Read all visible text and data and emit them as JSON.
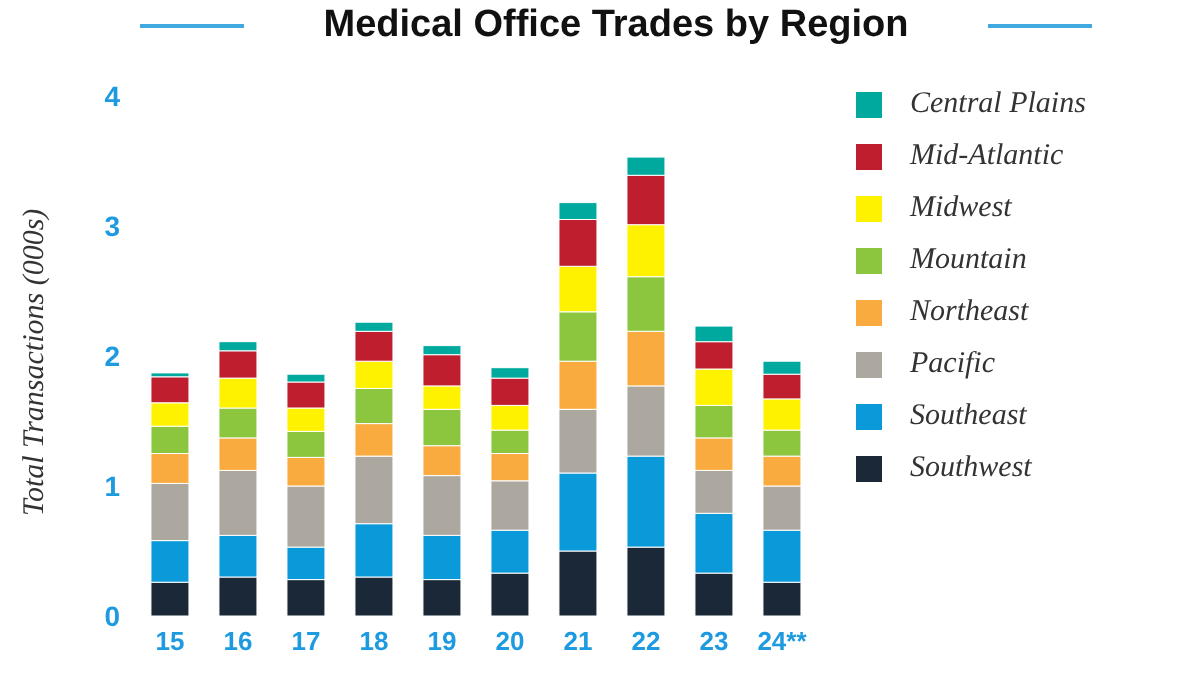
{
  "chart_data": {
    "type": "bar",
    "title": "Medical Office Trades by Region",
    "ylabel": "Total Transactions (000s)",
    "stacked": true,
    "legend": "right",
    "grid": false,
    "categories": [
      "15",
      "16",
      "17",
      "18",
      "19",
      "20",
      "21",
      "22",
      "23",
      "24**"
    ],
    "ylim": [
      0,
      4
    ],
    "yticks": [
      0,
      1,
      2,
      3,
      4
    ],
    "series": [
      {
        "name": "Southwest",
        "color": "#1b2838",
        "values": [
          0.26,
          0.3,
          0.28,
          0.3,
          0.28,
          0.33,
          0.5,
          0.53,
          0.33,
          0.26
        ]
      },
      {
        "name": "Southeast",
        "color": "#0a9ad9",
        "values": [
          0.32,
          0.32,
          0.25,
          0.41,
          0.34,
          0.33,
          0.6,
          0.7,
          0.46,
          0.4
        ]
      },
      {
        "name": "Pacific",
        "color": "#aca8a0",
        "values": [
          0.44,
          0.5,
          0.47,
          0.52,
          0.46,
          0.38,
          0.49,
          0.54,
          0.33,
          0.34
        ]
      },
      {
        "name": "Northeast",
        "color": "#f9ab3f",
        "values": [
          0.23,
          0.25,
          0.22,
          0.25,
          0.23,
          0.21,
          0.37,
          0.42,
          0.25,
          0.23
        ]
      },
      {
        "name": "Mountain",
        "color": "#8cc63f",
        "values": [
          0.21,
          0.23,
          0.2,
          0.27,
          0.28,
          0.18,
          0.38,
          0.42,
          0.25,
          0.2
        ]
      },
      {
        "name": "Midwest",
        "color": "#fff200",
        "values": [
          0.18,
          0.23,
          0.18,
          0.21,
          0.18,
          0.19,
          0.35,
          0.4,
          0.28,
          0.24
        ]
      },
      {
        "name": "Mid-Atlantic",
        "color": "#be1e2d",
        "values": [
          0.2,
          0.21,
          0.2,
          0.23,
          0.24,
          0.21,
          0.36,
          0.38,
          0.21,
          0.19
        ]
      },
      {
        "name": "Central Plains",
        "color": "#00a99d",
        "values": [
          0.03,
          0.07,
          0.06,
          0.07,
          0.07,
          0.08,
          0.13,
          0.14,
          0.12,
          0.1
        ]
      }
    ]
  }
}
